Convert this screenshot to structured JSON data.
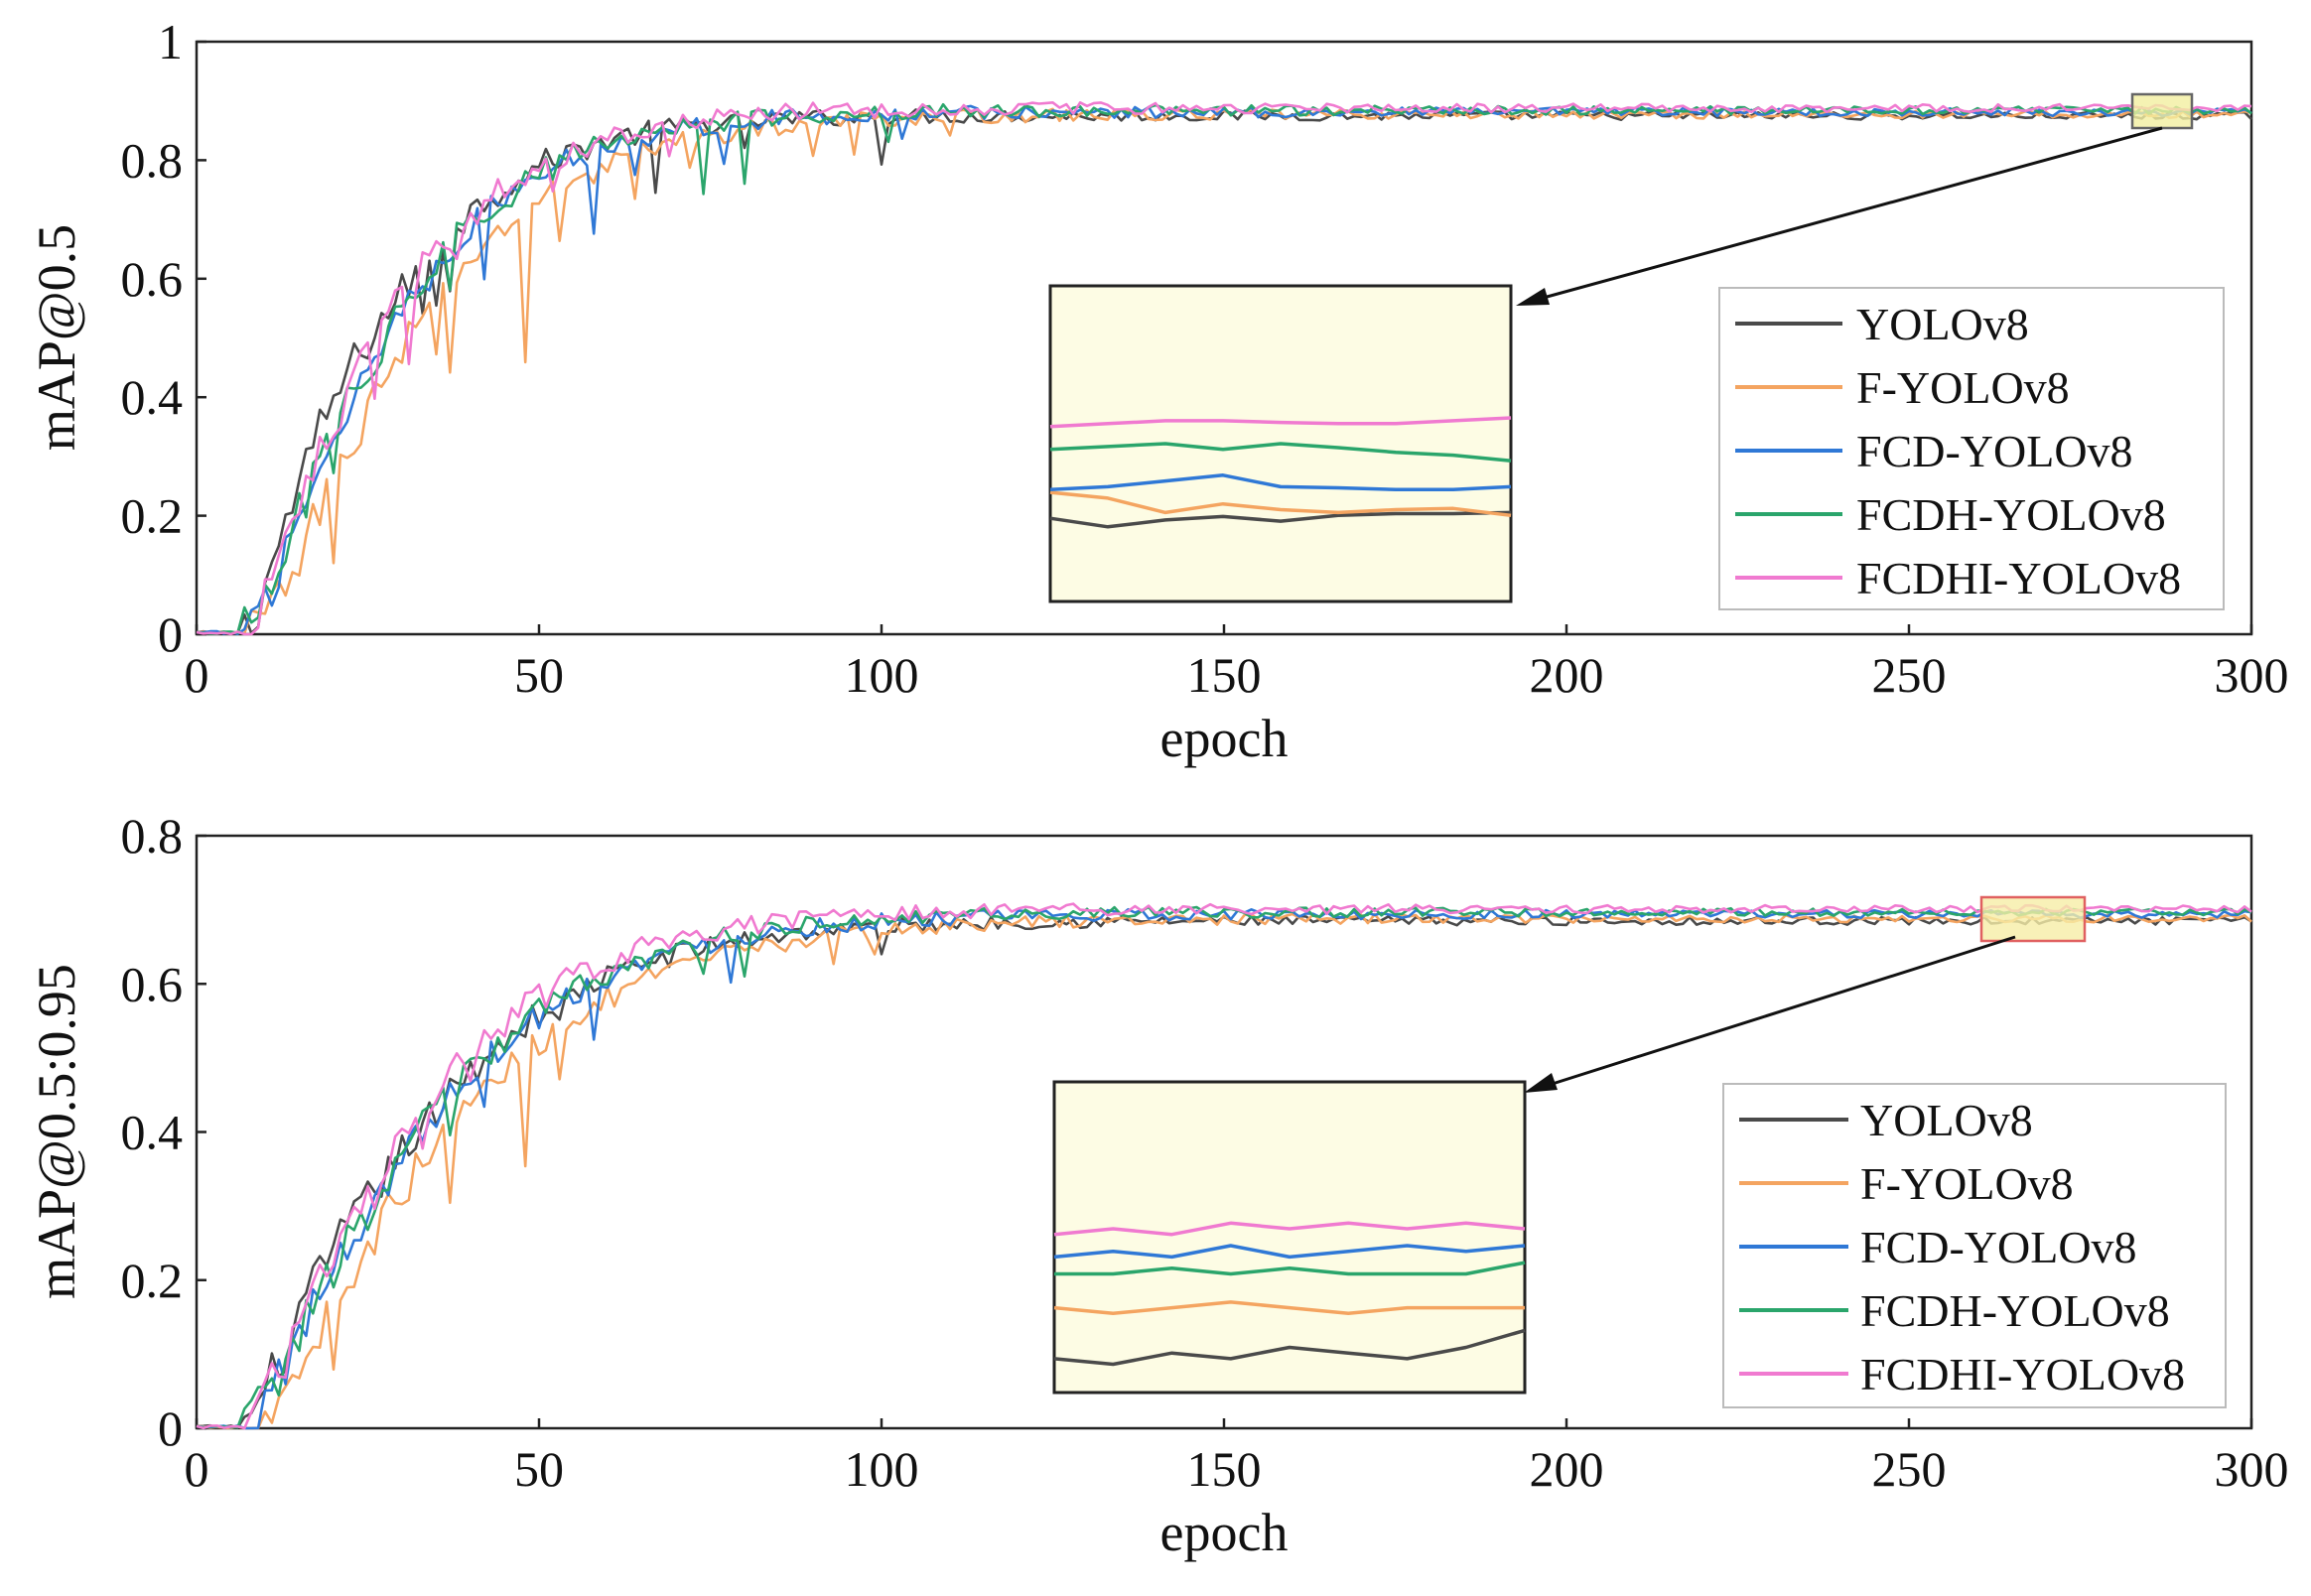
{
  "colors": {
    "YOLOv8": "#4a4a4a",
    "F-YOLOv8": "#f4a460",
    "FCD-YOLOv8": "#2f78d6",
    "FCDH-YOLOv8": "#2aa56b",
    "FCDHI-YOLOv8": "#f07ad0",
    "inset_fill": "#fdfce4",
    "marker_top_fill": "#f2efa0",
    "marker_top_stroke": "#666666",
    "marker_bottom_fill": "#f6eea6",
    "marker_bottom_stroke": "#e06060"
  },
  "chart_data": [
    {
      "id": "top",
      "type": "line",
      "xlabel": "epoch",
      "ylabel": "mAP@0.5",
      "xlim": [
        0,
        300
      ],
      "ylim": [
        0,
        1
      ],
      "xticks": [
        0,
        50,
        100,
        150,
        200,
        250,
        300
      ],
      "xtick_labels": [
        "0",
        "50",
        "100",
        "150",
        "200",
        "250",
        "300"
      ],
      "yticks": [
        0,
        0.2,
        0.4,
        0.6,
        0.8,
        1
      ],
      "ytick_labels": [
        "0",
        "0.2",
        "0.4",
        "0.6",
        "0.8",
        "1"
      ],
      "legend": [
        "YOLOv8",
        "F-YOLOv8",
        "FCD-YOLOv8",
        "FCDH-YOLOv8",
        "FCDHI-YOLOv8"
      ],
      "zoom_window": {
        "x": [
          284,
          292
        ],
        "y": [
          0.855,
          0.91
        ]
      },
      "series": [
        {
          "name": "YOLOv8",
          "final": 0.875,
          "tau": 48,
          "offset": 2,
          "start": 7,
          "lead": 0.04,
          "dips": [
            [
              33,
              0.1
            ],
            [
              35,
              0.09
            ],
            [
              37,
              0.08
            ],
            [
              67,
              0.09
            ],
            [
              80,
              0.06
            ],
            [
              100,
              0.07
            ]
          ],
          "inset_values": [
            0.8695,
            0.868,
            0.8692,
            0.8698,
            0.869,
            0.87,
            0.8703,
            0.8703,
            0.8705
          ]
        },
        {
          "name": "F-YOLOv8",
          "final": 0.877,
          "tau": 58,
          "offset": 3,
          "start": 8,
          "lead": -0.02,
          "dips": [
            [
              20,
              0.1
            ],
            [
              35,
              0.12
            ],
            [
              37,
              0.16
            ],
            [
              48,
              0.25
            ],
            [
              53,
              0.08
            ],
            [
              64,
              0.06
            ],
            [
              72,
              0.05
            ],
            [
              90,
              0.06
            ],
            [
              96,
              0.05
            ],
            [
              110,
              0.04
            ]
          ],
          "inset_values": [
            0.874,
            0.873,
            0.8705,
            0.872,
            0.871,
            0.8705,
            0.871,
            0.8712,
            0.87
          ]
        },
        {
          "name": "FCD-YOLOv8",
          "final": 0.881,
          "tau": 52,
          "offset": 2,
          "start": 7,
          "lead": 0.0,
          "dips": [
            [
              42,
              0.13
            ],
            [
              58,
              0.14
            ],
            [
              64,
              0.05
            ],
            [
              77,
              0.07
            ],
            [
              103,
              0.05
            ]
          ],
          "inset_values": [
            0.8745,
            0.875,
            0.876,
            0.877,
            0.875,
            0.8748,
            0.8745,
            0.8745,
            0.875
          ]
        },
        {
          "name": "FCDH-YOLOv8",
          "final": 0.884,
          "tau": 52,
          "offset": 2,
          "start": 7,
          "lead": 0.0,
          "dips": [
            [
              20,
              0.09
            ],
            [
              37,
              0.08
            ],
            [
              74,
              0.11
            ],
            [
              80,
              0.12
            ],
            [
              101,
              0.04
            ]
          ],
          "inset_values": [
            0.8815,
            0.882,
            0.8825,
            0.8815,
            0.8825,
            0.8818,
            0.881,
            0.8805,
            0.8795
          ]
        },
        {
          "name": "FCDHI-YOLOv8",
          "final": 0.888,
          "tau": 50,
          "offset": 2,
          "start": 7,
          "lead": 0.0,
          "dips": [
            [
              26,
              0.1
            ],
            [
              31,
              0.12
            ],
            [
              38,
              0.07
            ],
            [
              52,
              0.06
            ],
            [
              69,
              0.04
            ]
          ],
          "inset_values": [
            0.8855,
            0.886,
            0.8865,
            0.8865,
            0.8862,
            0.886,
            0.886,
            0.8865,
            0.887
          ]
        }
      ]
    },
    {
      "id": "bottom",
      "type": "line",
      "xlabel": "epoch",
      "ylabel": "mAP@0.5:0.95",
      "xlim": [
        0,
        300
      ],
      "ylim": [
        0,
        0.8
      ],
      "xticks": [
        0,
        50,
        100,
        150,
        200,
        250,
        300
      ],
      "xtick_labels": [
        "0",
        "50",
        "100",
        "150",
        "200",
        "250",
        "300"
      ],
      "yticks": [
        0,
        0.2,
        0.4,
        0.6,
        0.8
      ],
      "ytick_labels": [
        "0",
        "0.2",
        "0.4",
        "0.6",
        "0.8"
      ],
      "legend": [
        "YOLOv8",
        "F-YOLOv8",
        "FCD-YOLOv8",
        "FCDH-YOLOv8",
        "FCDHI-YOLOv8"
      ],
      "zoom_window": {
        "x": [
          261,
          276
        ],
        "y": [
          0.665,
          0.72
        ]
      },
      "series": [
        {
          "name": "YOLOv8",
          "final": 0.685,
          "tau": 62,
          "offset": 4,
          "start": 7,
          "lead": 0.03,
          "dips": [
            [
              35,
              0.05
            ],
            [
              53,
              0.05
            ],
            [
              100,
              0.05
            ]
          ],
          "inset_values": [
            0.671,
            0.67,
            0.672,
            0.671,
            0.673,
            0.672,
            0.671,
            0.673,
            0.676
          ]
        },
        {
          "name": "F-YOLOv8",
          "final": 0.688,
          "tau": 70,
          "offset": 5,
          "start": 8,
          "lead": -0.02,
          "dips": [
            [
              20,
              0.07
            ],
            [
              37,
              0.12
            ],
            [
              48,
              0.18
            ],
            [
              53,
              0.07
            ],
            [
              93,
              0.06
            ],
            [
              99,
              0.05
            ]
          ],
          "inset_values": [
            0.68,
            0.679,
            0.68,
            0.681,
            0.68,
            0.679,
            0.68,
            0.68,
            0.68
          ]
        },
        {
          "name": "FCD-YOLOv8",
          "final": 0.694,
          "tau": 64,
          "offset": 4,
          "start": 7,
          "lead": 0.0,
          "dips": [
            [
              42,
              0.06
            ],
            [
              58,
              0.08
            ],
            [
              78,
              0.06
            ]
          ],
          "inset_values": [
            0.689,
            0.69,
            0.689,
            0.691,
            0.689,
            0.69,
            0.691,
            0.69,
            0.691
          ]
        },
        {
          "name": "FCDH-YOLOv8",
          "final": 0.697,
          "tau": 64,
          "offset": 4,
          "start": 7,
          "lead": 0.0,
          "dips": [
            [
              20,
              0.06
            ],
            [
              37,
              0.06
            ],
            [
              74,
              0.07
            ],
            [
              80,
              0.08
            ]
          ],
          "inset_values": [
            0.686,
            0.686,
            0.687,
            0.686,
            0.687,
            0.686,
            0.686,
            0.686,
            0.688
          ]
        },
        {
          "name": "FCDHI-YOLOv8",
          "final": 0.701,
          "tau": 60,
          "offset": 4,
          "start": 7,
          "lead": 0.0,
          "dips": [
            [
              26,
              0.06
            ],
            [
              33,
              0.08
            ],
            [
              40,
              0.05
            ]
          ],
          "inset_values": [
            0.693,
            0.694,
            0.693,
            0.695,
            0.694,
            0.695,
            0.694,
            0.695,
            0.694
          ]
        }
      ]
    }
  ]
}
